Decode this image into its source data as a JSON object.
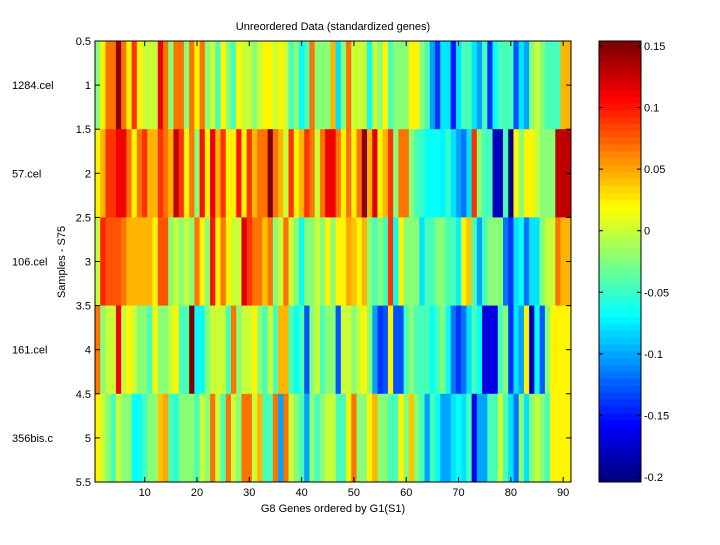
{
  "chart_data": {
    "type": "heatmap",
    "title": "Unreordered Data (standardized genes)",
    "xlabel": "G8 Genes ordered by G1(S1)",
    "ylabel": "Samples - S75",
    "x_ticks": [
      10,
      20,
      30,
      40,
      50,
      60,
      70,
      80,
      90
    ],
    "y_ticks": [
      "0.5",
      "1",
      "1.5",
      "2",
      "2.5",
      "3",
      "3.5",
      "4",
      "4.5",
      "5",
      "5.5"
    ],
    "xlim": [
      0.5,
      91.5
    ],
    "ylim": [
      0.5,
      5.5
    ],
    "row_labels": [
      "1284.cel",
      "57.cel",
      "106.cel",
      "161.cel",
      "356bis.c"
    ],
    "colormap": "jet",
    "clim": [
      -0.204,
      0.154
    ],
    "colorbar_ticks": [
      "0.15",
      "0.1",
      "0.05",
      "0",
      "-0.05",
      "-0.1",
      "-0.15",
      "-0.2"
    ],
    "rows": [
      [
        -0.022,
        0.02,
        0.065,
        0.065,
        0.145,
        0.065,
        0.02,
        0.09,
        0.02,
        0,
        0,
        0,
        0.11,
        0.065,
        -0.022,
        0.065,
        0.065,
        -0.022,
        0.065,
        0.02,
        0.065,
        -0.022,
        0,
        -0.045,
        0.02,
        -0.022,
        -0.045,
        0.02,
        0,
        0,
        -0.022,
        0,
        0.02,
        0.02,
        0,
        0.02,
        0,
        -0.045,
        -0.022,
        -0.067,
        -0.045,
        0.065,
        -0.022,
        -0.022,
        -0.022,
        0.045,
        -0.08,
        -0.022,
        0.065,
        0,
        0,
        0,
        -0.067,
        0,
        -0.022,
        0.02,
        -0.045,
        -0.022,
        -0.022,
        -0.022,
        0.02,
        0.02,
        -0.022,
        -0.045,
        -0.1,
        -0.14,
        -0.08,
        -0.08,
        -0.15,
        -0.08,
        -0.045,
        -0.045,
        -0.08,
        -0.1,
        -0.045,
        -0.14,
        -0.067,
        -0.045,
        -0.045,
        -0.045,
        -0.13,
        -0.08,
        -0.1,
        -0.022,
        0,
        -0.022,
        -0.045,
        -0.045,
        -0.045,
        0.045,
        0.045
      ],
      [
        0.02,
        0.045,
        0.09,
        0.09,
        0.11,
        0.11,
        0.065,
        0.02,
        0.065,
        0.09,
        0.045,
        0.045,
        0.09,
        0.065,
        0.045,
        0.13,
        0.09,
        0.02,
        0.065,
        -0.022,
        0.1,
        0.02,
        0.11,
        0.045,
        0.09,
        0.02,
        0.02,
        0.1,
        0.02,
        0.09,
        0.045,
        0.065,
        0.065,
        0.15,
        0.065,
        0.045,
        0,
        0.09,
        0.02,
        0.045,
        0.09,
        0.065,
        0,
        0.065,
        0.11,
        0.11,
        0.065,
        0.02,
        0.065,
        0.02,
        0.07,
        0.145,
        0.045,
        0.12,
        0.02,
        0.045,
        0.09,
        -0.022,
        0.07,
        0.07,
        -0.022,
        -0.045,
        -0.05,
        -0.067,
        -0.067,
        -0.067,
        -0.075,
        -0.05,
        -0.08,
        -0.1,
        -0.12,
        -0.08,
        0.09,
        -0.022,
        -0.045,
        -0.045,
        -0.18,
        -0.18,
        -0.045,
        -0.2,
        0.02,
        -0.022,
        0.02,
        0.02,
        0,
        -0.022,
        -0.022,
        -0.022,
        0.13,
        0.13,
        0.13
      ],
      [
        0,
        0.095,
        0.08,
        0.08,
        0.08,
        0.07,
        0.045,
        0.045,
        0.045,
        0.045,
        0.045,
        0.02,
        0.08,
        0.08,
        -0.022,
        0,
        -0.022,
        0,
        -0.022,
        0.065,
        0.02,
        -0.022,
        0.1,
        0.02,
        0.065,
        0.02,
        0,
        0,
        0.115,
        0.09,
        0.065,
        0.065,
        0.04,
        0.065,
        -0.022,
        0,
        0.065,
        0,
        -0.022,
        -0.067,
        -0.022,
        -0.022,
        0,
        -0.022,
        0.02,
        -0.022,
        0.02,
        0.02,
        0.05,
        0.04,
        0.02,
        0.045,
        -0.022,
        -0.045,
        -0.022,
        -0.045,
        0.09,
        -0.067,
        0.02,
        -0.022,
        -0.022,
        -0.022,
        -0.08,
        -0.045,
        -0.045,
        -0.022,
        -0.022,
        -0.045,
        -0.045,
        -0.075,
        0.02,
        0.04,
        -0.045,
        -0.1,
        -0.045,
        -0.022,
        -0.022,
        -0.022,
        -0.12,
        -0.14,
        -0.08,
        -0.067,
        -0.12,
        -0.08,
        -0.08,
        -0.022,
        0,
        0,
        0.065,
        0.045,
        0.045
      ],
      [
        0.065,
        -0.022,
        0,
        0,
        0.11,
        0,
        0.02,
        0,
        -0.022,
        -0.022,
        -0.045,
        0.02,
        -0.022,
        -0.022,
        0,
        0.02,
        -0.045,
        -0.045,
        0.15,
        -0.067,
        -0.067,
        -0.022,
        0,
        0,
        0,
        -0.045,
        0.065,
        -0.022,
        0,
        0,
        0.02,
        -0.022,
        -0.045,
        0,
        -0.045,
        0.045,
        0.045,
        -0.045,
        -0.067,
        -0.045,
        -0.13,
        -0.022,
        0,
        -0.045,
        -0.022,
        -0.022,
        -0.13,
        0,
        0,
        -0.022,
        0,
        0.02,
        -0.022,
        -0.1,
        -0.14,
        -0.13,
        0.02,
        -0.13,
        -0.13,
        -0.045,
        -0.022,
        -0.045,
        -0.045,
        -0.045,
        -0.067,
        -0.045,
        -0.022,
        -0.067,
        -0.12,
        -0.14,
        -0.12,
        -0.08,
        -0.045,
        -0.067,
        -0.17,
        -0.17,
        -0.17,
        -0.045,
        -0.022,
        -0.14,
        -0.08,
        -0.1,
        0.02,
        -0.18,
        -0.067,
        -0.13,
        -0.022,
        0.02,
        0.02,
        0.02,
        0.02
      ],
      [
        0.02,
        0,
        -0.022,
        -0.045,
        0,
        -0.022,
        -0.022,
        -0.067,
        -0.067,
        -0.045,
        -0.022,
        -0.022,
        0.04,
        0.05,
        -0.045,
        -0.055,
        -0.022,
        -0.022,
        -0.022,
        -0.045,
        0,
        -0.022,
        0.065,
        0,
        -0.045,
        0.065,
        0,
        -0.022,
        0.065,
        0.065,
        0,
        0.045,
        -0.045,
        -0.045,
        0.065,
        -0.1,
        0.065,
        0,
        -0.022,
        -0.045,
        -0.1,
        -0.022,
        -0.045,
        -0.022,
        0,
        0,
        -0.045,
        -0.045,
        0.02,
        0.065,
        -0.022,
        -0.022,
        0.02,
        0.045,
        -0.022,
        -0.022,
        -0.045,
        -0.045,
        0.02,
        -0.022,
        0.04,
        -0.022,
        -0.045,
        -0.1,
        -0.045,
        -0.067,
        -0.1,
        -0.1,
        -0.08,
        -0.067,
        -0.08,
        -0.045,
        -0.16,
        -0.1,
        -0.1,
        -0.045,
        -0.045,
        0,
        -0.045,
        -0.08,
        -0.12,
        -0.022,
        -0.08,
        -0.022,
        0,
        -0.022,
        -0.045,
        0.02,
        0.02,
        0.02,
        0.02
      ]
    ]
  }
}
